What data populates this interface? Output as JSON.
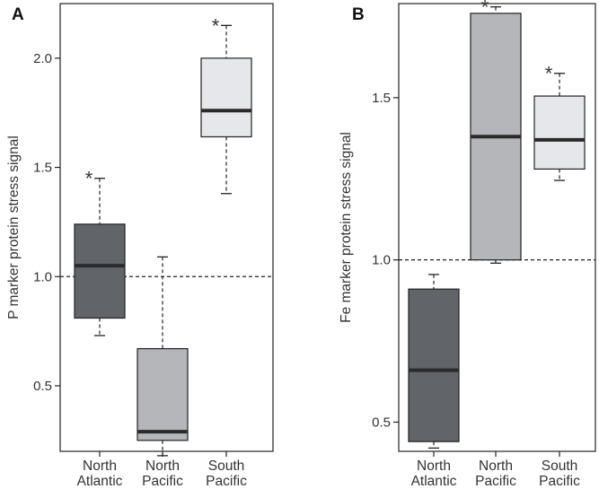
{
  "chart_data": [
    {
      "type": "boxplot",
      "panel_label": "A",
      "ylabel": "P marker protein stress signal",
      "ylim": [
        0.2,
        2.25
      ],
      "yticks": [
        0.5,
        1.0,
        1.5,
        2.0
      ],
      "ytick_labels": [
        "0.5",
        "1.0",
        "1.5",
        "2.0"
      ],
      "reference_line": 1.0,
      "categories": [
        {
          "label_lines": [
            "North",
            "Atlantic"
          ],
          "min": 0.73,
          "q1": 0.81,
          "median": 1.05,
          "q3": 1.24,
          "max": 1.45,
          "fill": "#616469",
          "significant": "*"
        },
        {
          "label_lines": [
            "North",
            "Pacific"
          ],
          "min": 0.18,
          "q1": 0.25,
          "median": 0.29,
          "q3": 0.67,
          "max": 1.09,
          "fill": "#b4b6b9",
          "significant": ""
        },
        {
          "label_lines": [
            "South",
            "Pacific"
          ],
          "min": 1.38,
          "q1": 1.64,
          "median": 1.76,
          "q3": 2.0,
          "max": 2.15,
          "fill": "#e6e7ea",
          "significant": "*"
        }
      ]
    },
    {
      "type": "boxplot",
      "panel_label": "B",
      "ylabel": "Fe marker protein stress signal",
      "ylim": [
        0.41,
        1.79
      ],
      "yticks": [
        0.5,
        1.0,
        1.5
      ],
      "ytick_labels": [
        "0.5",
        "1.0",
        "1.5"
      ],
      "reference_line": 1.0,
      "categories": [
        {
          "label_lines": [
            "North",
            "Atlantic"
          ],
          "min": 0.42,
          "q1": 0.44,
          "median": 0.66,
          "q3": 0.91,
          "max": 0.955,
          "fill": "#616469",
          "significant": ""
        },
        {
          "label_lines": [
            "North",
            "Pacific"
          ],
          "min": 0.99,
          "q1": 1.0,
          "median": 1.38,
          "q3": 1.76,
          "max": 1.78,
          "fill": "#b4b6b9",
          "significant": "*"
        },
        {
          "label_lines": [
            "South",
            "Pacific"
          ],
          "min": 1.245,
          "q1": 1.28,
          "median": 1.37,
          "q3": 1.505,
          "max": 1.575,
          "fill": "#e6e7ea",
          "significant": "*"
        }
      ]
    }
  ]
}
